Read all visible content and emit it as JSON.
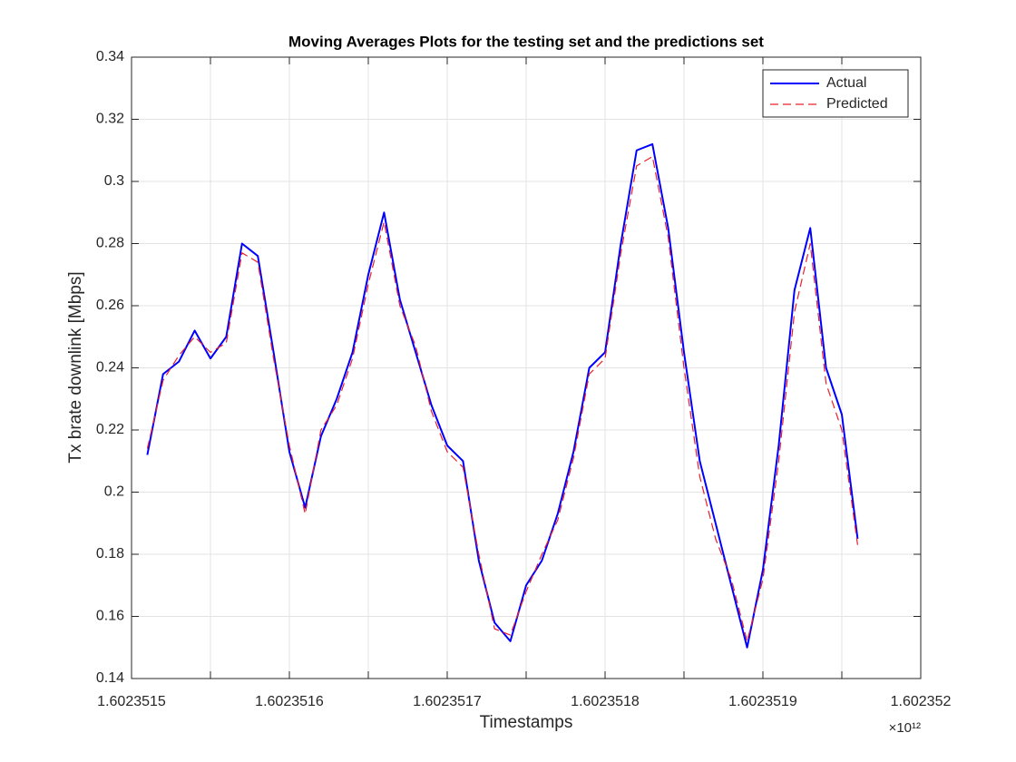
{
  "chart_data": {
    "type": "line",
    "title": "Moving Averages Plots for the testing set and the predictions set",
    "x_label": "Timestamps",
    "y_label": "Tx brate downlink [Mbps]",
    "x_exponent_label": "×10¹²",
    "x": [
      1.60235151,
      1.60235152,
      1.60235153,
      1.60235154,
      1.60235155,
      1.60235156,
      1.60235157,
      1.60235158,
      1.60235159,
      1.6023516,
      1.60235161,
      1.60235162,
      1.60235163,
      1.60235164,
      1.60235165,
      1.60235166,
      1.60235167,
      1.60235168,
      1.60235169,
      1.6023517,
      1.60235171,
      1.60235172,
      1.60235173,
      1.60235174,
      1.60235175,
      1.60235176,
      1.60235177,
      1.60235178,
      1.60235179,
      1.6023518,
      1.60235181,
      1.60235182,
      1.60235183,
      1.60235184,
      1.60235185,
      1.60235186,
      1.60235187,
      1.60235188,
      1.60235189,
      1.6023519,
      1.60235191,
      1.60235192,
      1.60235193,
      1.60235194,
      1.60235195,
      1.60235196
    ],
    "series": [
      {
        "name": "Actual",
        "color": "#0000ff",
        "dashed": false,
        "values": [
          0.212,
          0.238,
          0.242,
          0.252,
          0.243,
          0.25,
          0.28,
          0.276,
          0.245,
          0.213,
          0.195,
          0.218,
          0.23,
          0.245,
          0.27,
          0.29,
          0.262,
          0.245,
          0.228,
          0.215,
          0.21,
          0.178,
          0.158,
          0.152,
          0.17,
          0.178,
          0.193,
          0.213,
          0.24,
          0.245,
          0.28,
          0.31,
          0.312,
          0.285,
          0.245,
          0.21,
          0.19,
          0.17,
          0.15,
          0.175,
          0.215,
          0.265,
          0.285,
          0.24,
          0.225,
          0.185
        ]
      },
      {
        "name": "Predicted",
        "color": "#e8202a",
        "dashed": true,
        "values": [
          0.214,
          0.236,
          0.244,
          0.25,
          0.245,
          0.248,
          0.277,
          0.274,
          0.243,
          0.215,
          0.193,
          0.22,
          0.228,
          0.243,
          0.267,
          0.287,
          0.26,
          0.247,
          0.226,
          0.213,
          0.208,
          0.18,
          0.156,
          0.154,
          0.168,
          0.18,
          0.191,
          0.211,
          0.238,
          0.243,
          0.277,
          0.305,
          0.308,
          0.282,
          0.24,
          0.205,
          0.185,
          0.172,
          0.152,
          0.172,
          0.21,
          0.258,
          0.28,
          0.235,
          0.22,
          0.183
        ]
      }
    ],
    "xlim": [
      1.6023515,
      1.602352
    ],
    "xticks": [
      1.6023515,
      1.6023516,
      1.6023517,
      1.6023518,
      1.6023519,
      1.602352
    ],
    "xminorticks": [
      1.60235155,
      1.60235165,
      1.60235175,
      1.60235185,
      1.60235195
    ],
    "ylim": [
      0.14,
      0.34
    ],
    "yticks": [
      0.14,
      0.16,
      0.18,
      0.2,
      0.22,
      0.24,
      0.26,
      0.28,
      0.3,
      0.32,
      0.34
    ],
    "grid": true,
    "legend": "northeast"
  }
}
